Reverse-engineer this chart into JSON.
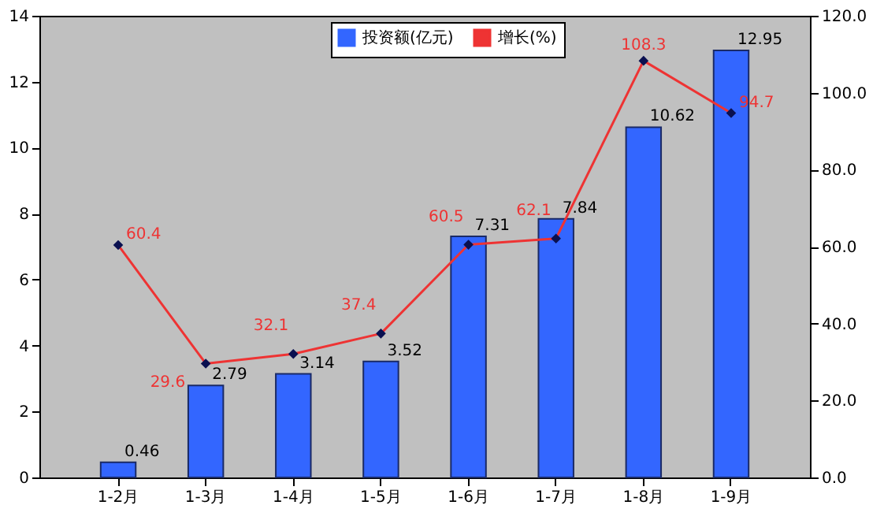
{
  "chart_data": {
    "type": "bar",
    "categories": [
      "1-2月",
      "1-3月",
      "1-4月",
      "1-5月",
      "1-6月",
      "1-7月",
      "1-8月",
      "1-9月"
    ],
    "series": [
      {
        "name": "投资额(亿元)",
        "type": "bar",
        "color": "#3366ff",
        "values": [
          0.46,
          2.79,
          3.14,
          3.52,
          7.31,
          7.84,
          10.62,
          12.95
        ]
      },
      {
        "name": "增长(%)",
        "type": "line",
        "axis": "y2",
        "color": "#ee3333",
        "marker": "diamond",
        "values": [
          60.4,
          29.6,
          32.1,
          37.4,
          60.5,
          62.1,
          108.3,
          94.7
        ]
      }
    ],
    "ylim": [
      0,
      14
    ],
    "yticks": [
      0,
      2,
      4,
      6,
      8,
      10,
      12,
      14
    ],
    "y2lim": [
      0,
      120
    ],
    "y2ticks": [
      {
        "value": 0,
        "label": "0.0"
      },
      {
        "value": 20,
        "label": "20.0"
      },
      {
        "value": 40,
        "label": "40.0"
      },
      {
        "value": 60,
        "label": "60.0"
      },
      {
        "value": 80,
        "label": "80.0"
      },
      {
        "value": 100,
        "label": "100.0"
      },
      {
        "value": 120,
        "label": "120.0"
      }
    ],
    "data_labels": true,
    "legend": "top right",
    "grid": false
  }
}
